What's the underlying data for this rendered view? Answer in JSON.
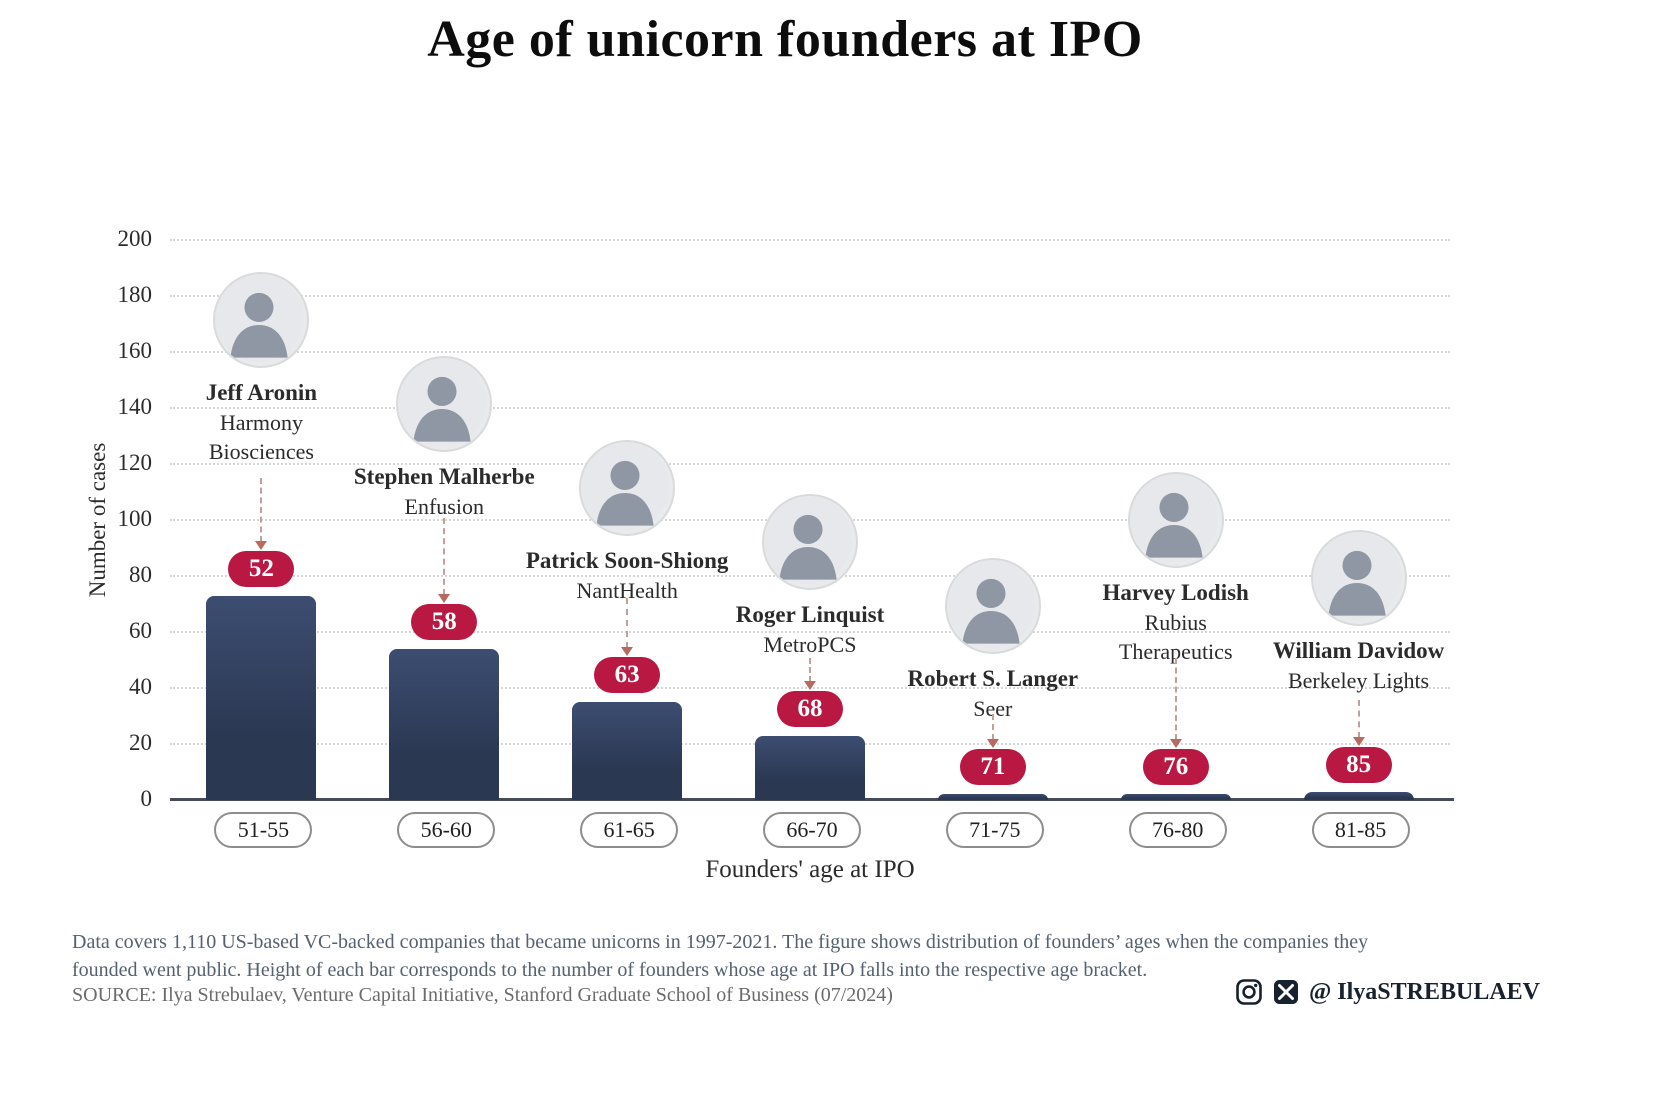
{
  "title": "Age of unicorn founders at IPO",
  "chart_data": {
    "type": "bar",
    "categories": [
      "51-55",
      "56-60",
      "61-65",
      "66-70",
      "71-75",
      "76-80",
      "81-85"
    ],
    "values": [
      73,
      54,
      35,
      23,
      2,
      2,
      3
    ],
    "title": "Age of unicorn founders at IPO",
    "xlabel": "Founders' age at IPO",
    "ylabel": "Number of cases",
    "ylim": [
      0,
      200
    ],
    "ytick_step": 20,
    "grid": "dotted-horizontal",
    "legend": "none",
    "bar_color": "#2a3852",
    "bar_color_top": "#3d4d71",
    "badge_color": "#b91843",
    "annotations": [
      {
        "age": "52",
        "name": "Jeff Aronin",
        "company": "Harmony Biosciences"
      },
      {
        "age": "58",
        "name": "Stephen Malherbe",
        "company": "Enfusion"
      },
      {
        "age": "63",
        "name": "Patrick Soon-Shiong",
        "company": "NantHealth"
      },
      {
        "age": "68",
        "name": "Roger Linquist",
        "company": "MetroPCS"
      },
      {
        "age": "71",
        "name": "Robert S. Langer",
        "company": "Seer"
      },
      {
        "age": "76",
        "name": "Harvey Lodish",
        "company": "Rubius Therapeutics"
      },
      {
        "age": "85",
        "name": "William Davidow",
        "company": "Berkeley Lights"
      }
    ]
  },
  "footnote": "Data covers 1,110 US-based VC-backed companies that became unicorns in 1997-2021. The figure shows distribution of founders’ ages when the companies they founded went public. Height of each bar corresponds to the number of founders whose age at IPO falls into the respective age bracket.",
  "source": "SOURCE: Ilya Strebulaev, Venture Capital Initiative, Stanford Graduate School of Business (07/2024)",
  "social": {
    "handle": "@ IlyaSTREBULAEV",
    "icons": [
      "instagram-icon",
      "x-icon"
    ]
  }
}
